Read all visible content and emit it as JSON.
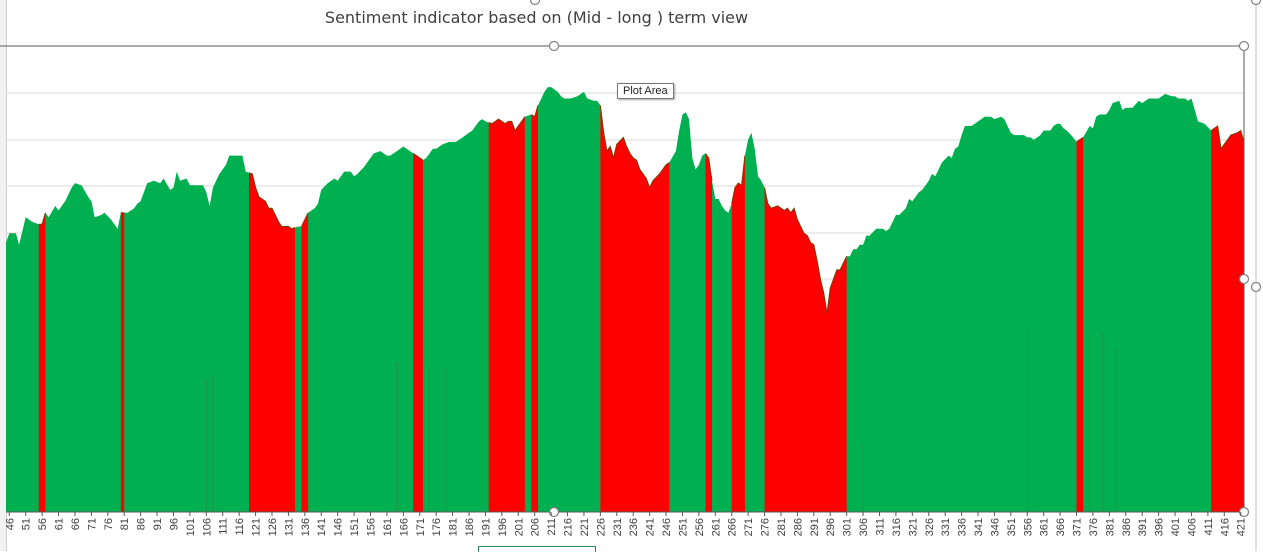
{
  "tooltip": "Plot Area",
  "colors": {
    "bull": "#00b050",
    "bear": "#ff0000",
    "grid": "#d9d9d9",
    "axis": "#595959",
    "handle": "#7f7f7f"
  },
  "chart_data": {
    "type": "area",
    "title": "Sentiment indicator based on (Mid - long ) term view",
    "xlabel": "",
    "ylabel": "",
    "legend": "none",
    "grid": true,
    "x_start": 45,
    "x_end": 422,
    "tick_labels": [
      "46",
      "51",
      "56",
      "61",
      "66",
      "71",
      "76",
      "81",
      "86",
      "91",
      "96",
      "101",
      "106",
      "111",
      "116",
      "121",
      "126",
      "131",
      "136",
      "141",
      "146",
      "151",
      "156",
      "161",
      "166",
      "171",
      "176",
      "181",
      "186",
      "191",
      "196",
      "201",
      "206",
      "211",
      "216",
      "221",
      "226",
      "231",
      "236",
      "241",
      "246",
      "251",
      "256",
      "261",
      "266",
      "271",
      "276",
      "281",
      "286",
      "291",
      "296",
      "301",
      "306",
      "311",
      "316",
      "321",
      "326",
      "331",
      "336",
      "341",
      "346",
      "351",
      "356",
      "361",
      "366",
      "371",
      "376",
      "381",
      "386",
      "391",
      "396",
      "401",
      "406",
      "411",
      "416",
      "421"
    ],
    "series": [
      {
        "values_by_x": [
          [
            45,
            1.18
          ],
          [
            46,
            1.22
          ],
          [
            48,
            1.22
          ],
          [
            49,
            1.17
          ],
          [
            51,
            1.29
          ],
          [
            53,
            1.27
          ],
          [
            55,
            1.26
          ],
          [
            56,
            1.26
          ],
          [
            57,
            1.31
          ],
          [
            58,
            1.29
          ],
          [
            60,
            1.34
          ],
          [
            61,
            1.32
          ],
          [
            63,
            1.36
          ],
          [
            65,
            1.42
          ],
          [
            66,
            1.44
          ],
          [
            68,
            1.43
          ],
          [
            70,
            1.38
          ],
          [
            71,
            1.36
          ],
          [
            72,
            1.29
          ],
          [
            74,
            1.3
          ],
          [
            75,
            1.31
          ],
          [
            77,
            1.28
          ],
          [
            78,
            1.26
          ],
          [
            79,
            1.24
          ],
          [
            80,
            1.31
          ],
          [
            82,
            1.31
          ],
          [
            84,
            1.33
          ],
          [
            85,
            1.35
          ],
          [
            86,
            1.36
          ],
          [
            88,
            1.44
          ],
          [
            90,
            1.45
          ],
          [
            92,
            1.44
          ],
          [
            93,
            1.46
          ],
          [
            95,
            1.41
          ],
          [
            96,
            1.42
          ],
          [
            97,
            1.49
          ],
          [
            98,
            1.45
          ],
          [
            100,
            1.46
          ],
          [
            101,
            1.43
          ],
          [
            104,
            1.43
          ],
          [
            105,
            1.43
          ],
          [
            106,
            1.4
          ],
          [
            107,
            1.34
          ],
          [
            108,
            1.42
          ],
          [
            110,
            1.48
          ],
          [
            112,
            1.52
          ],
          [
            113,
            1.56
          ],
          [
            115,
            1.56
          ],
          [
            117,
            1.56
          ],
          [
            118,
            1.49
          ],
          [
            120,
            1.48
          ],
          [
            121,
            1.42
          ],
          [
            122,
            1.38
          ],
          [
            124,
            1.36
          ],
          [
            125,
            1.33
          ],
          [
            126,
            1.33
          ],
          [
            127,
            1.3
          ],
          [
            128,
            1.27
          ],
          [
            129,
            1.25
          ],
          [
            130,
            1.25
          ],
          [
            131,
            1.25
          ],
          [
            132,
            1.24
          ],
          [
            134,
            1.25
          ],
          [
            135,
            1.25
          ],
          [
            137,
            1.31
          ],
          [
            139,
            1.33
          ],
          [
            140,
            1.35
          ],
          [
            141,
            1.41
          ],
          [
            143,
            1.44
          ],
          [
            145,
            1.46
          ],
          [
            146,
            1.45
          ],
          [
            148,
            1.49
          ],
          [
            150,
            1.49
          ],
          [
            151,
            1.47
          ],
          [
            152,
            1.48
          ],
          [
            154,
            1.51
          ],
          [
            156,
            1.55
          ],
          [
            157,
            1.57
          ],
          [
            159,
            1.58
          ],
          [
            160,
            1.57
          ],
          [
            161,
            1.56
          ],
          [
            162,
            1.56
          ],
          [
            163,
            1.57
          ],
          [
            164,
            1.58
          ],
          [
            166,
            1.6
          ],
          [
            167,
            1.59
          ],
          [
            168,
            1.58
          ],
          [
            170,
            1.56
          ],
          [
            171,
            1.55
          ],
          [
            172,
            1.54
          ],
          [
            173,
            1.55
          ],
          [
            174,
            1.57
          ],
          [
            175,
            1.59
          ],
          [
            176,
            1.59
          ],
          [
            178,
            1.61
          ],
          [
            180,
            1.62
          ],
          [
            182,
            1.62
          ],
          [
            183,
            1.63
          ],
          [
            185,
            1.65
          ],
          [
            186,
            1.66
          ],
          [
            187,
            1.67
          ],
          [
            188,
            1.69
          ],
          [
            189,
            1.71
          ],
          [
            190,
            1.72
          ],
          [
            191,
            1.71
          ],
          [
            193,
            1.7
          ],
          [
            195,
            1.72
          ],
          [
            197,
            1.7
          ],
          [
            198,
            1.71
          ],
          [
            199,
            1.71
          ],
          [
            200,
            1.67
          ],
          [
            202,
            1.71
          ],
          [
            203,
            1.73
          ],
          [
            205,
            1.74
          ],
          [
            206,
            1.73
          ],
          [
            207,
            1.78
          ],
          [
            208,
            1.81
          ],
          [
            209,
            1.84
          ],
          [
            210,
            1.86
          ],
          [
            211,
            1.86
          ],
          [
            212,
            1.85
          ],
          [
            213,
            1.84
          ],
          [
            214,
            1.82
          ],
          [
            215,
            1.81
          ],
          [
            217,
            1.81
          ],
          [
            219,
            1.82
          ],
          [
            221,
            1.84
          ],
          [
            222,
            1.81
          ],
          [
            224,
            1.8
          ],
          [
            225,
            1.8
          ],
          [
            226,
            1.78
          ],
          [
            227,
            1.66
          ],
          [
            228,
            1.58
          ],
          [
            229,
            1.6
          ],
          [
            230,
            1.55
          ],
          [
            231,
            1.61
          ],
          [
            233,
            1.64
          ],
          [
            234,
            1.6
          ],
          [
            235,
            1.57
          ],
          [
            236,
            1.55
          ],
          [
            237,
            1.54
          ],
          [
            238,
            1.5
          ],
          [
            240,
            1.46
          ],
          [
            241,
            1.42
          ],
          [
            242,
            1.45
          ],
          [
            244,
            1.48
          ],
          [
            246,
            1.52
          ],
          [
            247,
            1.53
          ],
          [
            249,
            1.58
          ],
          [
            250,
            1.67
          ],
          [
            251,
            1.74
          ],
          [
            252,
            1.75
          ],
          [
            253,
            1.72
          ],
          [
            254,
            1.55
          ],
          [
            255,
            1.5
          ],
          [
            256,
            1.52
          ],
          [
            257,
            1.56
          ],
          [
            258,
            1.57
          ],
          [
            259,
            1.55
          ],
          [
            260,
            1.45
          ],
          [
            261,
            1.37
          ],
          [
            262,
            1.37
          ],
          [
            263,
            1.34
          ],
          [
            264,
            1.32
          ],
          [
            265,
            1.31
          ],
          [
            266,
            1.35
          ],
          [
            267,
            1.42
          ],
          [
            268,
            1.44
          ],
          [
            269,
            1.43
          ],
          [
            270,
            1.56
          ],
          [
            271,
            1.63
          ],
          [
            272,
            1.66
          ],
          [
            273,
            1.59
          ],
          [
            274,
            1.47
          ],
          [
            275,
            1.45
          ],
          [
            276,
            1.42
          ],
          [
            277,
            1.35
          ],
          [
            278,
            1.33
          ],
          [
            280,
            1.34
          ],
          [
            281,
            1.33
          ],
          [
            282,
            1.32
          ],
          [
            283,
            1.33
          ],
          [
            284,
            1.31
          ],
          [
            285,
            1.33
          ],
          [
            286,
            1.28
          ],
          [
            287,
            1.25
          ],
          [
            288,
            1.22
          ],
          [
            289,
            1.21
          ],
          [
            290,
            1.18
          ],
          [
            291,
            1.17
          ],
          [
            292,
            1.1
          ],
          [
            293,
            1.02
          ],
          [
            294,
            0.96
          ],
          [
            295,
            0.87
          ],
          [
            296,
            0.98
          ],
          [
            297,
            1.02
          ],
          [
            298,
            1.06
          ],
          [
            299,
            1.06
          ],
          [
            300,
            1.09
          ],
          [
            301,
            1.12
          ],
          [
            302,
            1.12
          ],
          [
            303,
            1.15
          ],
          [
            304,
            1.15
          ],
          [
            305,
            1.17
          ],
          [
            306,
            1.17
          ],
          [
            307,
            1.21
          ],
          [
            308,
            1.21
          ],
          [
            310,
            1.24
          ],
          [
            312,
            1.24
          ],
          [
            313,
            1.23
          ],
          [
            314,
            1.24
          ],
          [
            316,
            1.3
          ],
          [
            317,
            1.3
          ],
          [
            319,
            1.33
          ],
          [
            320,
            1.37
          ],
          [
            321,
            1.36
          ],
          [
            323,
            1.4
          ],
          [
            324,
            1.41
          ],
          [
            326,
            1.45
          ],
          [
            327,
            1.48
          ],
          [
            328,
            1.47
          ],
          [
            330,
            1.53
          ],
          [
            332,
            1.56
          ],
          [
            333,
            1.55
          ],
          [
            334,
            1.59
          ],
          [
            335,
            1.6
          ],
          [
            336,
            1.65
          ],
          [
            337,
            1.69
          ],
          [
            338,
            1.69
          ],
          [
            339,
            1.69
          ],
          [
            340,
            1.7
          ],
          [
            342,
            1.72
          ],
          [
            343,
            1.73
          ],
          [
            345,
            1.73
          ],
          [
            346,
            1.72
          ],
          [
            348,
            1.73
          ],
          [
            349,
            1.72
          ],
          [
            351,
            1.66
          ],
          [
            352,
            1.65
          ],
          [
            354,
            1.65
          ],
          [
            355,
            1.65
          ],
          [
            356,
            1.64
          ],
          [
            357,
            1.64
          ],
          [
            358,
            1.63
          ],
          [
            360,
            1.65
          ],
          [
            361,
            1.67
          ],
          [
            363,
            1.67
          ],
          [
            364,
            1.69
          ],
          [
            365,
            1.7
          ],
          [
            366,
            1.7
          ],
          [
            367,
            1.68
          ],
          [
            368,
            1.67
          ],
          [
            370,
            1.64
          ],
          [
            371,
            1.62
          ],
          [
            373,
            1.64
          ],
          [
            375,
            1.69
          ],
          [
            376,
            1.68
          ],
          [
            377,
            1.73
          ],
          [
            378,
            1.74
          ],
          [
            380,
            1.74
          ],
          [
            381,
            1.76
          ],
          [
            382,
            1.79
          ],
          [
            384,
            1.8
          ],
          [
            385,
            1.76
          ],
          [
            386,
            1.77
          ],
          [
            388,
            1.77
          ],
          [
            390,
            1.8
          ],
          [
            391,
            1.79
          ],
          [
            393,
            1.81
          ],
          [
            395,
            1.81
          ],
          [
            396,
            1.81
          ],
          [
            398,
            1.83
          ],
          [
            400,
            1.82
          ],
          [
            401,
            1.82
          ],
          [
            402,
            1.81
          ],
          [
            404,
            1.81
          ],
          [
            405,
            1.8
          ],
          [
            406,
            1.81
          ],
          [
            408,
            1.71
          ],
          [
            410,
            1.7
          ],
          [
            412,
            1.67
          ],
          [
            414,
            1.69
          ],
          [
            415,
            1.59
          ],
          [
            417,
            1.63
          ],
          [
            418,
            1.65
          ],
          [
            420,
            1.66
          ],
          [
            421,
            1.67
          ],
          [
            422,
            1.62
          ]
        ]
      }
    ],
    "bear_ranges": [
      [
        55,
        57
      ],
      [
        80,
        81
      ],
      [
        119,
        133
      ],
      [
        135,
        137
      ],
      [
        169,
        172
      ],
      [
        192,
        203
      ],
      [
        205,
        207
      ],
      [
        226,
        247
      ],
      [
        258,
        260
      ],
      [
        266,
        270
      ],
      [
        276,
        301
      ],
      [
        371,
        373
      ],
      [
        412,
        422
      ]
    ],
    "spikes": [
      [
        106,
        0.58
      ],
      [
        108,
        0.6
      ],
      [
        164,
        0.66
      ],
      [
        174,
        0.64
      ],
      [
        179,
        0.63
      ],
      [
        306,
        0.29
      ],
      [
        356,
        0.8
      ],
      [
        375,
        0.79
      ],
      [
        379,
        0.79
      ],
      [
        383,
        0.72
      ]
    ],
    "ylim": [
      0,
      2.04
    ]
  }
}
